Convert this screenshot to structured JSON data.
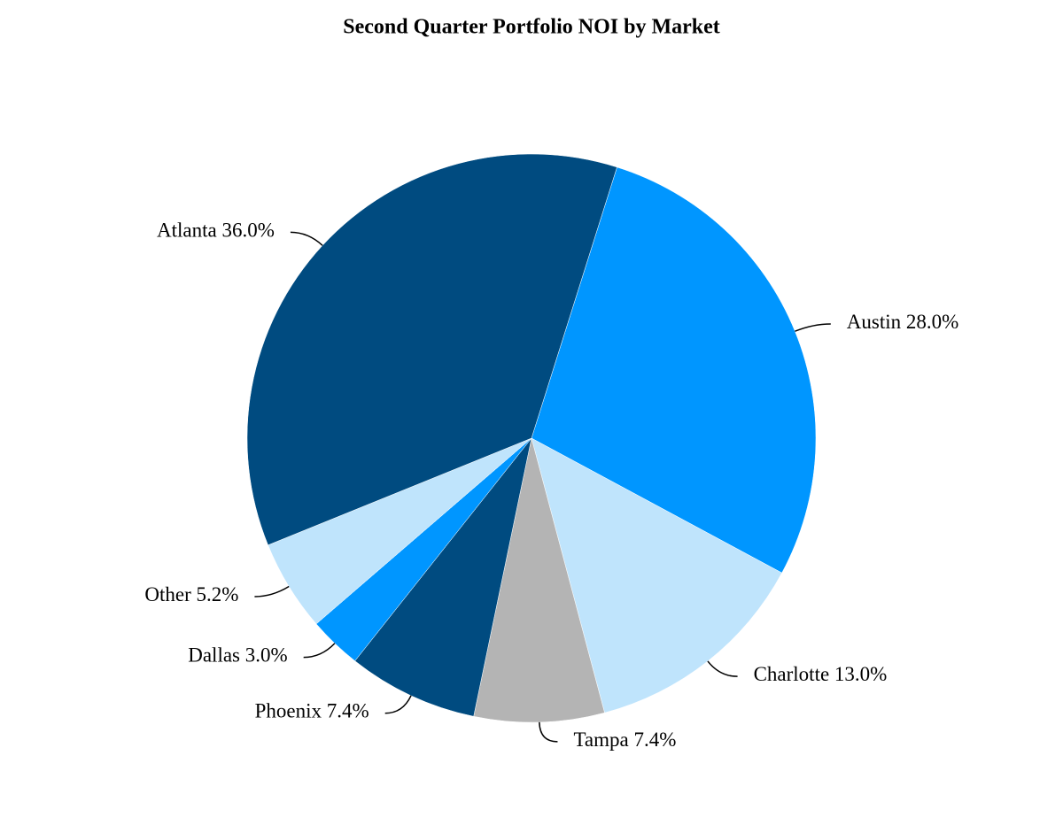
{
  "chart_data": {
    "type": "pie",
    "title": "Second Quarter Portfolio NOI by Market",
    "categories": [
      "Austin",
      "Charlotte",
      "Tampa",
      "Phoenix",
      "Dallas",
      "Other",
      "Atlanta"
    ],
    "values": [
      28.0,
      13.0,
      7.4,
      7.4,
      3.0,
      5.2,
      36.0
    ],
    "value_labels": [
      "28.0%",
      "13.0%",
      "7.4%",
      "7.4%",
      "3.0%",
      "5.2%",
      "36.0%"
    ],
    "colors": [
      "#0096ff",
      "#bfe4fc",
      "#b4b4b4",
      "#004b80",
      "#0096ff",
      "#bfe4fc",
      "#004b80"
    ]
  }
}
